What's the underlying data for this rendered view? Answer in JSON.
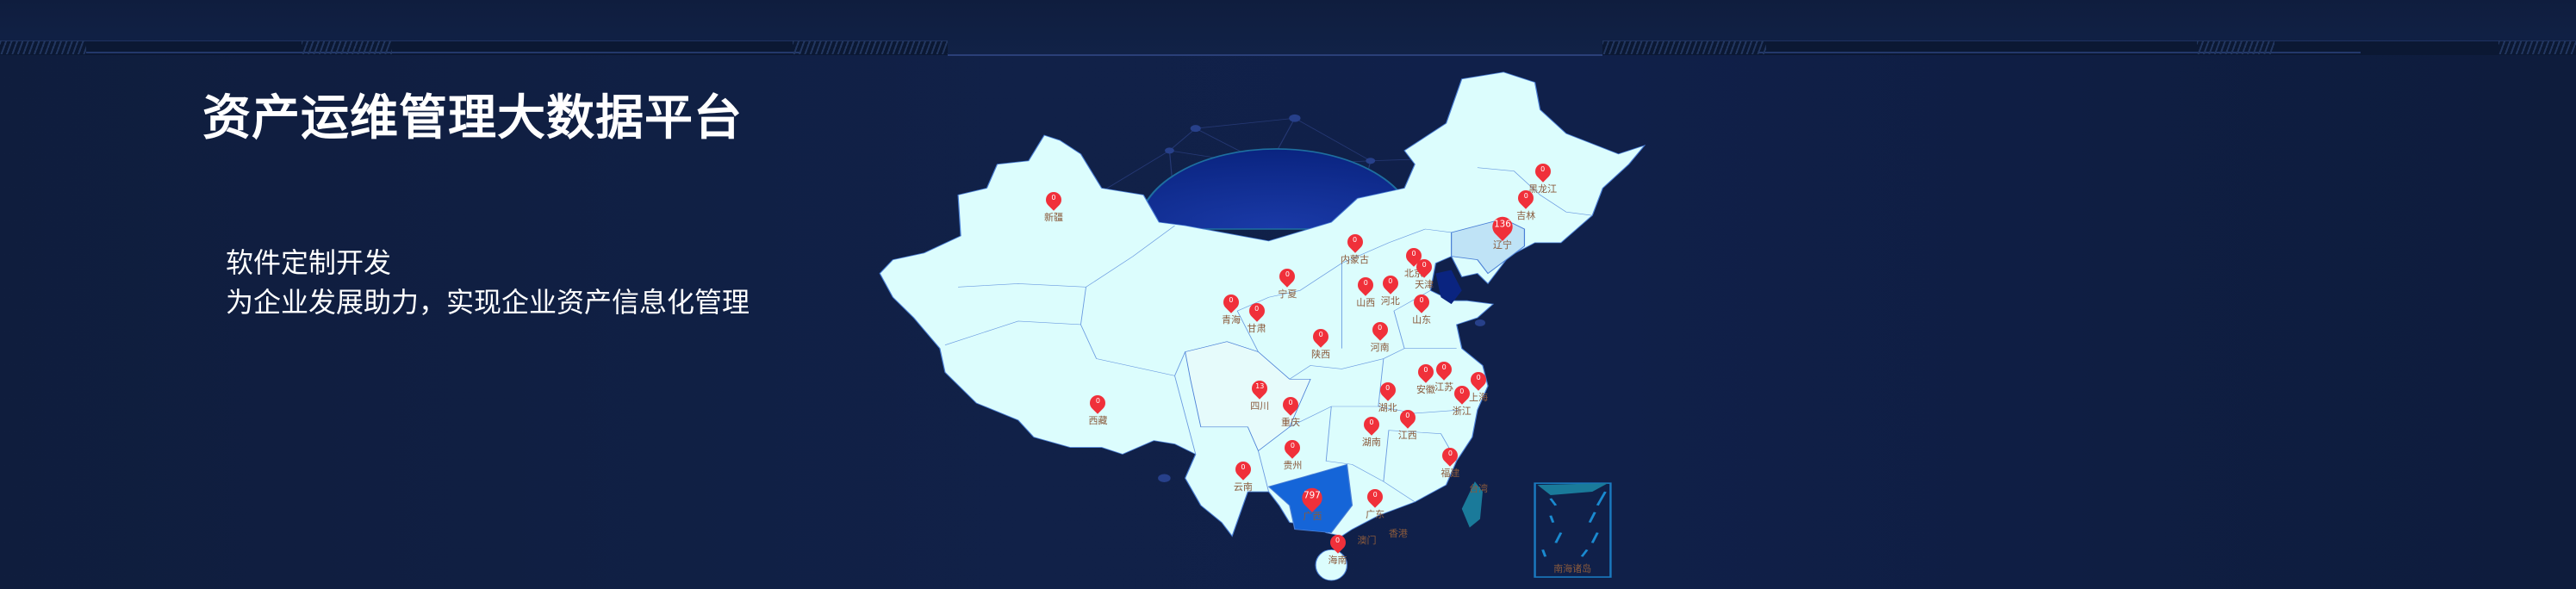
{
  "title": "资产运维管理大数据平台",
  "subtitle": {
    "line1": "软件定制开发",
    "line2": "为企业发展助力，实现企业资产信息化管理"
  },
  "colors": {
    "background": "#0f1d3d",
    "map_fill": "#dcfdfd",
    "map_border": "#4a7fd6",
    "highlight_high": "#1565d8",
    "highlight_mid": "#bfe3f6",
    "pin": "#f0303a",
    "label": "#8a5a3c",
    "taiwan": "#1a7a9a"
  },
  "map": {
    "provinces": [
      {
        "name": "新疆",
        "value": 0
      },
      {
        "name": "西藏",
        "value": 0
      },
      {
        "name": "青海",
        "value": 0
      },
      {
        "name": "甘肃",
        "value": 0
      },
      {
        "name": "宁夏",
        "value": 0
      },
      {
        "name": "内蒙古",
        "value": 0
      },
      {
        "name": "黑龙江",
        "value": 0
      },
      {
        "name": "吉林",
        "value": 0
      },
      {
        "name": "辽宁",
        "value": 136
      },
      {
        "name": "北京",
        "value": 0
      },
      {
        "name": "天津",
        "value": 0
      },
      {
        "name": "河北",
        "value": 0
      },
      {
        "name": "山西",
        "value": 0
      },
      {
        "name": "山东",
        "value": 0
      },
      {
        "name": "河南",
        "value": 0
      },
      {
        "name": "陕西",
        "value": 0
      },
      {
        "name": "江苏",
        "value": 0
      },
      {
        "name": "安徽",
        "value": 0
      },
      {
        "name": "上海",
        "value": 0
      },
      {
        "name": "浙江",
        "value": 0
      },
      {
        "name": "湖北",
        "value": 0
      },
      {
        "name": "四川",
        "value": 13
      },
      {
        "name": "重庆",
        "value": 0
      },
      {
        "name": "湖南",
        "value": 0
      },
      {
        "name": "江西",
        "value": 0
      },
      {
        "name": "贵州",
        "value": 0
      },
      {
        "name": "云南",
        "value": 0
      },
      {
        "name": "福建",
        "value": 0
      },
      {
        "name": "广西",
        "value": 797
      },
      {
        "name": "广东",
        "value": 0
      },
      {
        "name": "海南",
        "value": 0
      }
    ],
    "unpinned_labels": [
      "香港",
      "澳门",
      "台湾"
    ],
    "inset_label": "南海诸岛"
  }
}
